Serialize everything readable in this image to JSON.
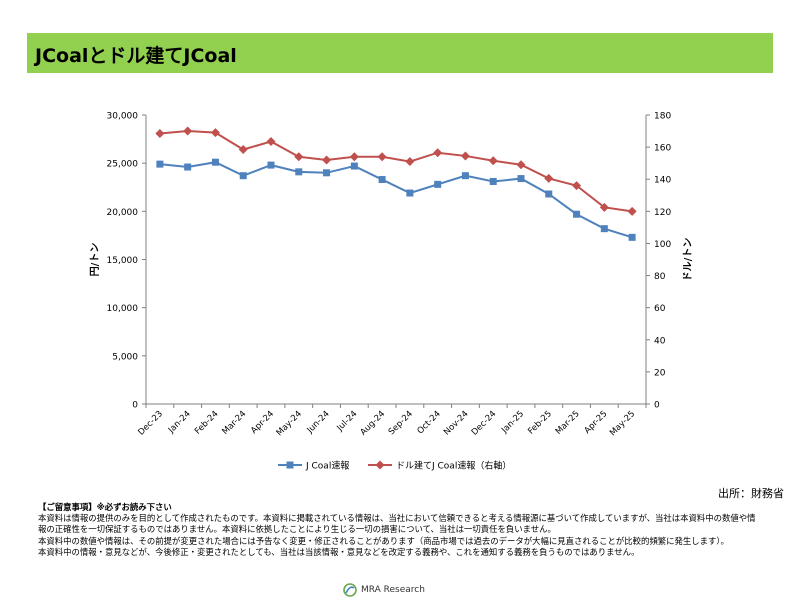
{
  "title": "JCoalとドル建てJCoal",
  "source": "出所：財務省",
  "notes": {
    "heading": "【ご留意事項】※必ずお読み下さい",
    "lines": [
      "本資料は情報の提供のみを目的として作成されたものです。本資料に掲載されている情報は、当社において信頼できると考える情報源に基づいて作成していますが、当社は本資料中の数値や情報の正確性を一切保証するものではありません。本資料に依拠したことにより生じる一切の損害について、当社は一切責任を負いません。",
      "本資料中の数値や情報は、その前提が変更された場合には予告なく変更・修正されることがあります（商品市場では過去のデータが大幅に見直されることが比較的頻繁に発生します）。",
      "本資料中の情報・意見などが、今後修正・変更されたとしても、当社は当該情報・意見などを改定する義務や、これを通知する義務を負うものではありません。"
    ]
  },
  "logo": {
    "text": "MRA Research",
    "icon": "mra-logo-icon"
  },
  "chart_data": {
    "type": "line",
    "categories": [
      "Dec-23",
      "Jan-24",
      "Feb-24",
      "Mar-24",
      "Apr-24",
      "May-24",
      "Jun-24",
      "Jul-24",
      "Aug-24",
      "Sep-24",
      "Oct-24",
      "Nov-24",
      "Dec-24",
      "Jan-25",
      "Feb-25",
      "Mar-25",
      "Apr-25",
      "May-25"
    ],
    "y_left": {
      "label": "円/トン",
      "min": 0,
      "max": 30000,
      "step": 5000,
      "ticks": [
        "0",
        "5,000",
        "10,000",
        "15,000",
        "20,000",
        "25,000",
        "30,000"
      ]
    },
    "y_right": {
      "label": "ドル/トン",
      "min": 0,
      "max": 180,
      "step": 20,
      "ticks": [
        "0",
        "20",
        "40",
        "60",
        "80",
        "100",
        "120",
        "140",
        "160",
        "180"
      ]
    },
    "series": [
      {
        "name": "J Coal速報",
        "axis": "left",
        "color": "#4f81bd",
        "marker": "square",
        "values": [
          24900,
          24600,
          25100,
          23700,
          24800,
          24100,
          24000,
          24700,
          23300,
          21900,
          22800,
          23700,
          23100,
          23400,
          21800,
          19700,
          18200,
          17300
        ]
      },
      {
        "name": "ドル建てJ Coal速報（右軸）",
        "axis": "right",
        "color": "#c0504d",
        "marker": "diamond",
        "values": [
          168.5,
          170.0,
          169.0,
          158.5,
          163.5,
          154.0,
          152.0,
          154.0,
          154.0,
          151.0,
          156.5,
          154.5,
          151.5,
          149.0,
          140.5,
          136.0,
          122.5,
          120.0
        ]
      }
    ],
    "legend_position": "bottom",
    "grid": false
  }
}
